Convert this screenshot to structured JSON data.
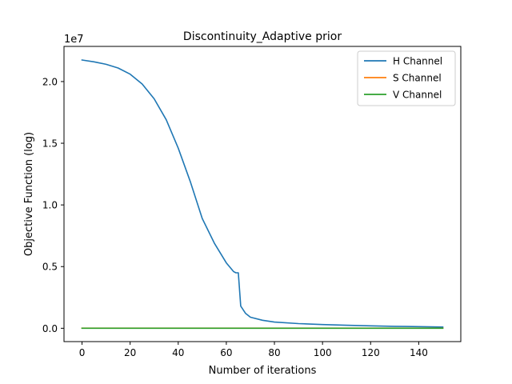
{
  "chart_data": {
    "type": "line",
    "title": "Discontinuity_Adaptive prior",
    "xlabel": "Number of iterations",
    "ylabel": "Objective Function (log)",
    "scale_label": "1e7",
    "xlim": [
      -7.5,
      157.5
    ],
    "ylim": [
      -1.08,
      22.85
    ],
    "x_ticks": [
      0,
      20,
      40,
      60,
      80,
      100,
      120,
      140
    ],
    "x_tick_labels": [
      "0",
      "20",
      "40",
      "60",
      "80",
      "100",
      "120",
      "140"
    ],
    "y_ticks": [
      0,
      5,
      10,
      15,
      20
    ],
    "y_tick_labels": [
      "0.0",
      "0.5",
      "1.0",
      "1.5",
      "2.0"
    ],
    "legend_position": "top-right",
    "grid": false,
    "series": [
      {
        "name": "H Channel",
        "color": "#1f77b4",
        "x": [
          0,
          5,
          10,
          15,
          20,
          25,
          30,
          35,
          40,
          45,
          50,
          55,
          60,
          63,
          64,
          65,
          66,
          68,
          70,
          75,
          80,
          90,
          100,
          110,
          120,
          130,
          140,
          150
        ],
        "y": [
          21.75,
          21.6,
          21.4,
          21.1,
          20.6,
          19.8,
          18.6,
          16.9,
          14.6,
          11.9,
          8.9,
          6.9,
          5.3,
          4.6,
          4.5,
          4.5,
          1.8,
          1.2,
          0.9,
          0.65,
          0.5,
          0.38,
          0.3,
          0.24,
          0.2,
          0.16,
          0.13,
          0.1
        ]
      },
      {
        "name": "S Channel",
        "color": "#ff7f0e",
        "x": [
          0,
          50,
          100,
          150
        ],
        "y": [
          0.01,
          0.01,
          0.01,
          0.01
        ]
      },
      {
        "name": "V Channel",
        "color": "#2ca02c",
        "x": [
          0,
          50,
          100,
          150
        ],
        "y": [
          0.0,
          0.0,
          0.0,
          0.0
        ]
      }
    ]
  }
}
